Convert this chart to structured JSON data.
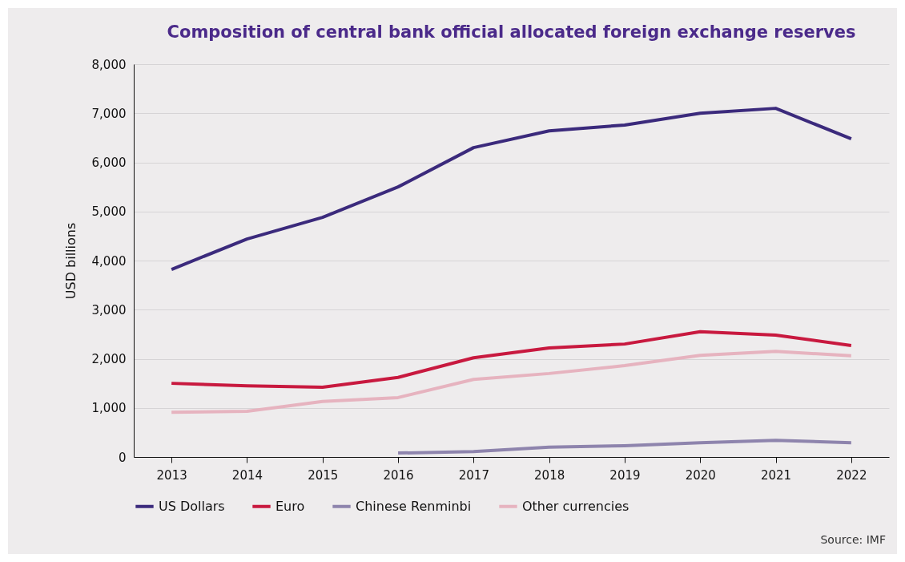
{
  "chart_data": {
    "type": "line",
    "title": "Composition of central bank official allocated foreign exchange reserves",
    "ylabel": "USD billions",
    "categories": [
      "2013",
      "2014",
      "2015",
      "2016",
      "2017",
      "2018",
      "2019",
      "2020",
      "2021",
      "2022"
    ],
    "series": [
      {
        "name": "US Dollars",
        "color": "#3b2a7c",
        "values": [
          3820,
          4440,
          4880,
          5500,
          6300,
          6640,
          6760,
          7000,
          7100,
          6480
        ]
      },
      {
        "name": "Euro",
        "color": "#c8193f",
        "values": [
          1500,
          1450,
          1420,
          1620,
          2020,
          2220,
          2300,
          2550,
          2480,
          2270
        ]
      },
      {
        "name": "Chinese Renminbi",
        "color": "#8e84ad",
        "values": [
          null,
          null,
          null,
          80,
          110,
          200,
          230,
          290,
          340,
          290
        ]
      },
      {
        "name": "Other currencies",
        "color": "#e6b3bf",
        "values": [
          910,
          930,
          1130,
          1210,
          1580,
          1700,
          1860,
          2070,
          2150,
          2060
        ]
      }
    ],
    "ylim": [
      0,
      8000
    ],
    "yticks": [
      0,
      {
        "value": 1000,
        "label": "1,000"
      },
      {
        "value": 2000,
        "label": "2,000"
      },
      {
        "value": 3000,
        "label": "3,000"
      },
      {
        "value": 4000,
        "label": "4,000"
      },
      {
        "value": 5000,
        "label": "5,000"
      },
      {
        "value": 6000,
        "label": "6,000"
      },
      {
        "value": 7000,
        "label": "7,000"
      },
      {
        "value": 8000,
        "label": "8,000"
      }
    ],
    "grid": "y",
    "legend": "bottom",
    "line_style": "solid",
    "marker": "none",
    "annotations": [
      "Source: IMF"
    ]
  }
}
